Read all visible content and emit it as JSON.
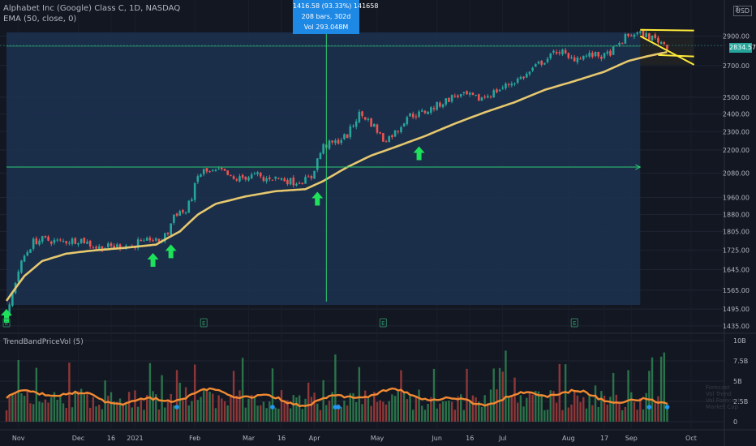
{
  "header": {
    "symbol_line": "Alphabet Inc (Google) Class C, 1D, NASDAQ",
    "ema_line": "EMA (50, close, 0)",
    "currency": "USD",
    "last_price": "2834.57"
  },
  "measure_tooltip": {
    "line1": "1416.58 (93.33%) 141658",
    "line2": "208 bars, 302d",
    "line3": "Vol 293.048M"
  },
  "indicator": {
    "name": "TrendBandPriceVol (5)",
    "side_labels": [
      "Forecast",
      "Vol Trend",
      "Vol Forecast",
      "Market Cap"
    ]
  },
  "colors": {
    "background": "#131722",
    "range_box": "#1c3150",
    "up": "#26a69a",
    "down": "#ef5350",
    "ema": "#e6c86e",
    "band": "#f28a32",
    "arrow": "#1ee05a",
    "triangle": "#ffeb3b",
    "dot": "#2196f3",
    "crosshair": "#2ecc71"
  },
  "chart_data": {
    "type": "candlestick",
    "price_axis": {
      "ticks": [
        1435,
        1495,
        1565,
        1645,
        1725,
        1805,
        1880,
        1960,
        2080,
        2200,
        2300,
        2400,
        2500,
        2700,
        2900
      ],
      "tick_labels": [
        "1435.00",
        "1495.00",
        "1565.00",
        "1645.00",
        "1725.00",
        "1805.00",
        "1880.00",
        "1960.00",
        "2080.00",
        "2200.00",
        "2300.00",
        "2400.00",
        "2500.00",
        "2700.00",
        "2900.00"
      ],
      "top_partial_label": "3",
      "range": [
        1410,
        2960
      ]
    },
    "volume_axis": {
      "ticks": [
        0,
        2.5,
        5,
        7.5,
        10
      ],
      "tick_labels": [
        "0",
        "2.5B",
        "5B",
        "7.5B",
        "10B"
      ]
    },
    "x_axis": {
      "labels": [
        {
          "text": "Nov",
          "i": 4
        },
        {
          "text": "Dec",
          "i": 24
        },
        {
          "text": "16",
          "i": 35
        },
        {
          "text": "2021",
          "i": 43
        },
        {
          "text": "Feb",
          "i": 63
        },
        {
          "text": "Mar",
          "i": 81
        },
        {
          "text": "16",
          "i": 92
        },
        {
          "text": "Apr",
          "i": 103
        },
        {
          "text": "May",
          "i": 124
        },
        {
          "text": "Jun",
          "i": 144
        },
        {
          "text": "16",
          "i": 155
        },
        {
          "text": "Jul",
          "i": 166
        },
        {
          "text": "Aug",
          "i": 188
        },
        {
          "text": "17",
          "i": 200
        },
        {
          "text": "Sep",
          "i": 209
        },
        {
          "text": "Oct",
          "i": 229
        }
      ],
      "count": 233
    },
    "price_keypoints": [
      [
        0,
        1480
      ],
      [
        1,
        1500
      ],
      [
        3,
        1600
      ],
      [
        4,
        1640
      ],
      [
        6,
        1700
      ],
      [
        9,
        1760
      ],
      [
        12,
        1770
      ],
      [
        18,
        1760
      ],
      [
        25,
        1770
      ],
      [
        30,
        1735
      ],
      [
        36,
        1740
      ],
      [
        40,
        1745
      ],
      [
        42,
        1735
      ],
      [
        44,
        1760
      ],
      [
        46,
        1750
      ],
      [
        48,
        1775
      ],
      [
        50,
        1760
      ],
      [
        52,
        1770
      ],
      [
        54,
        1800
      ],
      [
        56,
        1880
      ],
      [
        58,
        1895
      ],
      [
        60,
        1890
      ],
      [
        62,
        1965
      ],
      [
        64,
        2060
      ],
      [
        66,
        2090
      ],
      [
        68,
        2080
      ],
      [
        72,
        2090
      ],
      [
        76,
        2045
      ],
      [
        80,
        2060
      ],
      [
        84,
        2070
      ],
      [
        86,
        2040
      ],
      [
        88,
        2060
      ],
      [
        92,
        2050
      ],
      [
        96,
        2035
      ],
      [
        100,
        2045
      ],
      [
        102,
        2060
      ],
      [
        104,
        2150
      ],
      [
        106,
        2220
      ],
      [
        110,
        2240
      ],
      [
        114,
        2280
      ],
      [
        118,
        2400
      ],
      [
        120,
        2380
      ],
      [
        123,
        2330
      ],
      [
        126,
        2255
      ],
      [
        128,
        2270
      ],
      [
        131,
        2310
      ],
      [
        134,
        2390
      ],
      [
        138,
        2400
      ],
      [
        142,
        2430
      ],
      [
        146,
        2470
      ],
      [
        150,
        2510
      ],
      [
        154,
        2510
      ],
      [
        158,
        2490
      ],
      [
        162,
        2520
      ],
      [
        166,
        2560
      ],
      [
        170,
        2600
      ],
      [
        174,
        2640
      ],
      [
        178,
        2710
      ],
      [
        182,
        2760
      ],
      [
        184,
        2800
      ],
      [
        186,
        2790
      ],
      [
        188,
        2740
      ],
      [
        192,
        2760
      ],
      [
        196,
        2770
      ],
      [
        200,
        2760
      ],
      [
        204,
        2820
      ],
      [
        207,
        2890
      ],
      [
        210,
        2920
      ],
      [
        214,
        2905
      ],
      [
        218,
        2870
      ],
      [
        221,
        2834.57
      ]
    ],
    "ema_keypoints": [
      [
        0,
        1525
      ],
      [
        6,
        1620
      ],
      [
        12,
        1680
      ],
      [
        20,
        1710
      ],
      [
        28,
        1722
      ],
      [
        40,
        1735
      ],
      [
        50,
        1748
      ],
      [
        58,
        1805
      ],
      [
        64,
        1880
      ],
      [
        70,
        1930
      ],
      [
        80,
        1965
      ],
      [
        90,
        1990
      ],
      [
        100,
        2000
      ],
      [
        106,
        2040
      ],
      [
        114,
        2110
      ],
      [
        122,
        2170
      ],
      [
        130,
        2215
      ],
      [
        140,
        2275
      ],
      [
        150,
        2345
      ],
      [
        160,
        2410
      ],
      [
        170,
        2470
      ],
      [
        180,
        2545
      ],
      [
        190,
        2600
      ],
      [
        200,
        2660
      ],
      [
        208,
        2730
      ],
      [
        214,
        2760
      ],
      [
        221,
        2790
      ]
    ],
    "markers": {
      "arrows": [
        0,
        49,
        55,
        104,
        138
      ],
      "earnings": [
        0,
        66,
        126,
        190
      ]
    },
    "range_box": {
      "start": 0,
      "end": 212,
      "price_low": 1510,
      "price_high": 2926
    },
    "crosshair": {
      "i": 107,
      "price": 2110
    },
    "triangle": {
      "start": 212,
      "end": 230,
      "top_left": 2945,
      "top_right": 2940,
      "bottom_left": 2900,
      "bottom_right": 2705,
      "mid_right": 2760
    },
    "volume_dots": [
      57,
      89,
      110,
      111,
      215,
      221
    ]
  }
}
